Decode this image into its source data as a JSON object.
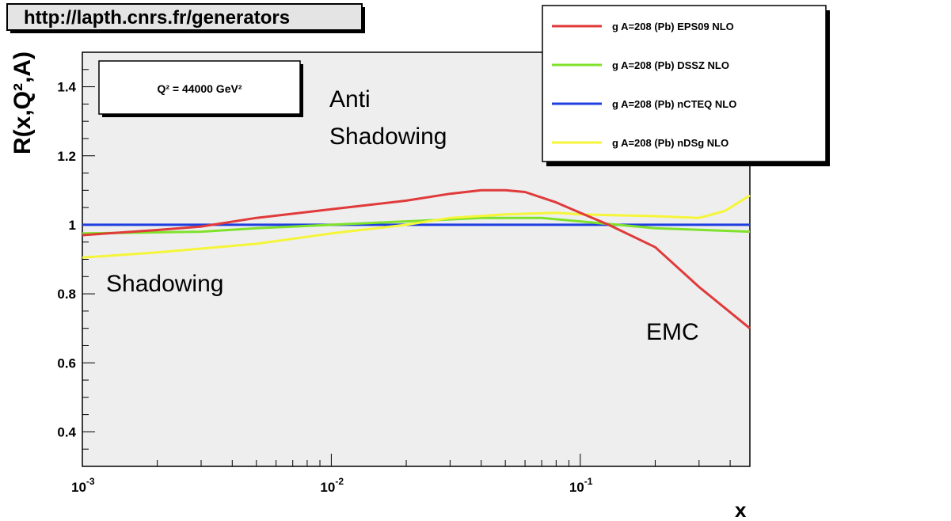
{
  "banner": "http://lapth.cnrs.fr/generators",
  "chart_data": {
    "type": "line",
    "title": "",
    "xlabel": "x",
    "ylabel": "R(x,Q²,A)",
    "xscale": "log",
    "xlim": [
      0.001,
      0.48
    ],
    "ylim": [
      0.3,
      1.5
    ],
    "grid": false,
    "legend_position": "top-right",
    "scale_label": "Q² = 44000 GeV²",
    "x_ticks": [
      {
        "value": 0.001,
        "base": "10",
        "exp": "-3"
      },
      {
        "value": 0.01,
        "base": "10",
        "exp": "-2"
      },
      {
        "value": 0.1,
        "base": "10",
        "exp": "-1"
      }
    ],
    "y_ticks": [
      {
        "value": 0.4,
        "label": "0.4"
      },
      {
        "value": 0.6,
        "label": "0.6"
      },
      {
        "value": 0.8,
        "label": "0.8"
      },
      {
        "value": 1.0,
        "label": "1"
      },
      {
        "value": 1.2,
        "label": "1.2"
      },
      {
        "value": 1.4,
        "label": "1.4"
      }
    ],
    "series": [
      {
        "name": "g  A=208 (Pb) EPS09 NLO",
        "color": "#e03a3a",
        "points": [
          [
            0.001,
            0.97
          ],
          [
            0.002,
            0.985
          ],
          [
            0.003,
            0.995
          ],
          [
            0.005,
            1.02
          ],
          [
            0.01,
            1.045
          ],
          [
            0.02,
            1.07
          ],
          [
            0.03,
            1.09
          ],
          [
            0.04,
            1.1
          ],
          [
            0.05,
            1.1
          ],
          [
            0.06,
            1.095
          ],
          [
            0.08,
            1.065
          ],
          [
            0.1,
            1.035
          ],
          [
            0.13,
            1.0
          ],
          [
            0.2,
            0.935
          ],
          [
            0.3,
            0.82
          ],
          [
            0.48,
            0.7
          ]
        ]
      },
      {
        "name": "g  A=208 (Pb) DSSZ NLO",
        "color": "#7fe22a",
        "points": [
          [
            0.001,
            0.975
          ],
          [
            0.003,
            0.98
          ],
          [
            0.005,
            0.99
          ],
          [
            0.01,
            1.0
          ],
          [
            0.02,
            1.01
          ],
          [
            0.04,
            1.02
          ],
          [
            0.07,
            1.02
          ],
          [
            0.1,
            1.01
          ],
          [
            0.2,
            0.99
          ],
          [
            0.48,
            0.98
          ]
        ]
      },
      {
        "name": "g  A=208 (Pb) nCTEQ NLO",
        "color": "#1f3fe0",
        "points": [
          [
            0.001,
            1.0
          ],
          [
            0.48,
            1.0
          ]
        ]
      },
      {
        "name": "g  A=208 (Pb) nDSg NLO",
        "color": "#f5f53a",
        "points": [
          [
            0.001,
            0.905
          ],
          [
            0.002,
            0.92
          ],
          [
            0.005,
            0.945
          ],
          [
            0.01,
            0.975
          ],
          [
            0.02,
            1.0
          ],
          [
            0.03,
            1.02
          ],
          [
            0.05,
            1.03
          ],
          [
            0.08,
            1.035
          ],
          [
            0.1,
            1.03
          ],
          [
            0.2,
            1.025
          ],
          [
            0.3,
            1.02
          ],
          [
            0.38,
            1.04
          ],
          [
            0.48,
            1.085
          ]
        ]
      }
    ],
    "annotations": [
      {
        "id": "anti",
        "lines": [
          "Anti",
          "Shadowing"
        ]
      },
      {
        "id": "shadowing",
        "lines": [
          "Shadowing"
        ]
      },
      {
        "id": "emc",
        "lines": [
          "EMC"
        ]
      }
    ]
  }
}
